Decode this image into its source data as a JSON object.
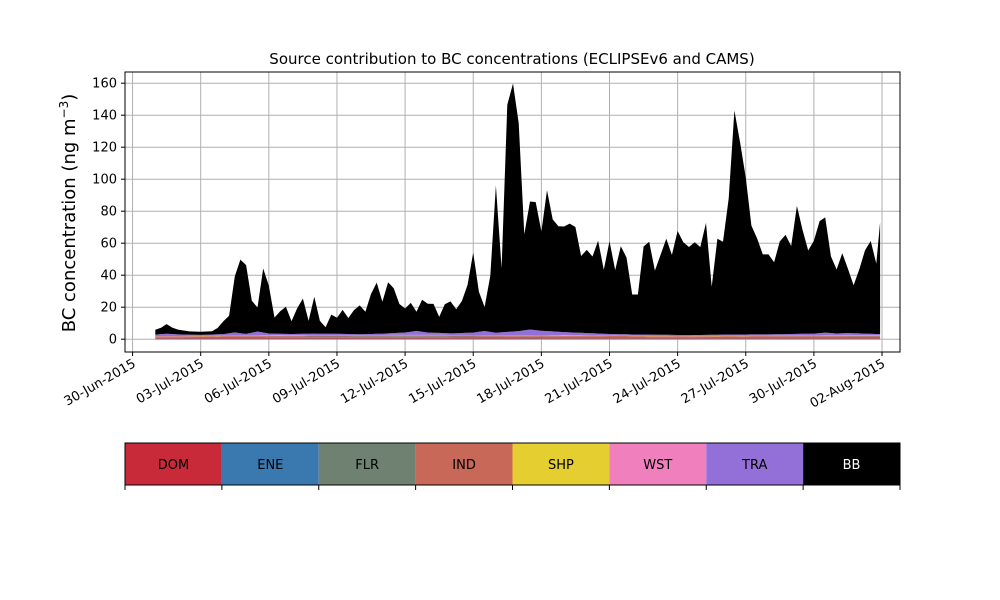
{
  "chart_data": {
    "type": "area",
    "title": "Source contribution to BC concentrations (ECLIPSEv6 and CAMS)",
    "ylabel": "BC concentration (ng m",
    "ylabel_sup": "−3",
    "ylabel_close": ")",
    "xlabel": "",
    "stacked": true,
    "ylim": [
      -8,
      167
    ],
    "xlim": [
      "2015-06-29T16:00",
      "2015-08-02T19:00"
    ],
    "yticks": [
      0,
      20,
      40,
      60,
      80,
      100,
      120,
      140,
      160
    ],
    "xticks": [
      {
        "date": "2015-06-30",
        "label": "30-Jun-2015"
      },
      {
        "date": "2015-07-03",
        "label": "03-Jul-2015"
      },
      {
        "date": "2015-07-06",
        "label": "06-Jul-2015"
      },
      {
        "date": "2015-07-09",
        "label": "09-Jul-2015"
      },
      {
        "date": "2015-07-12",
        "label": "12-Jul-2015"
      },
      {
        "date": "2015-07-15",
        "label": "15-Jul-2015"
      },
      {
        "date": "2015-07-18",
        "label": "18-Jul-2015"
      },
      {
        "date": "2015-07-21",
        "label": "21-Jul-2015"
      },
      {
        "date": "2015-07-24",
        "label": "24-Jul-2015"
      },
      {
        "date": "2015-07-27",
        "label": "27-Jul-2015"
      },
      {
        "date": "2015-07-30",
        "label": "30-Jul-2015"
      },
      {
        "date": "2015-08-02",
        "label": "02-Aug-2015"
      }
    ],
    "grid": true,
    "legend_placement": "bottom",
    "series": [
      {
        "name": "DOM",
        "color": "#c82a3a",
        "points": [
          [
            "2015-07-01T00:00",
            0.5
          ],
          [
            "2015-07-07T00:00",
            0.6
          ],
          [
            "2015-07-13T00:00",
            0.6
          ],
          [
            "2015-07-19T00:00",
            0.5
          ],
          [
            "2015-07-25T00:00",
            0.5
          ],
          [
            "2015-07-31T12:00",
            0.5
          ]
        ]
      },
      {
        "name": "ENE",
        "color": "#3a78b0",
        "points": [
          [
            "2015-07-01T00:00",
            0.2
          ],
          [
            "2015-07-10T00:00",
            0.2
          ],
          [
            "2015-07-20T00:00",
            0.2
          ],
          [
            "2015-07-31T12:00",
            0.2
          ]
        ]
      },
      {
        "name": "FLR",
        "color": "#6f8271",
        "points": [
          [
            "2015-07-01T00:00",
            0.5
          ],
          [
            "2015-07-06T00:00",
            0.8
          ],
          [
            "2015-07-12T00:00",
            1.0
          ],
          [
            "2015-07-18T00:00",
            0.8
          ],
          [
            "2015-07-24T00:00",
            0.6
          ],
          [
            "2015-07-31T12:00",
            0.9
          ]
        ]
      },
      {
        "name": "IND",
        "color": "#c86858",
        "points": [
          [
            "2015-07-01T00:00",
            0.5
          ],
          [
            "2015-07-06T00:00",
            0.6
          ],
          [
            "2015-07-12T00:00",
            0.7
          ],
          [
            "2015-07-18T00:00",
            0.8
          ],
          [
            "2015-07-24T00:00",
            0.5
          ],
          [
            "2015-07-31T12:00",
            0.6
          ]
        ]
      },
      {
        "name": "SHP",
        "color": "#e5ce30",
        "points": [
          [
            "2015-07-01T00:00",
            0.1
          ],
          [
            "2015-07-15T00:00",
            0.1
          ],
          [
            "2015-07-31T12:00",
            0.1
          ]
        ]
      },
      {
        "name": "WST",
        "color": "#f07fbd",
        "points": [
          [
            "2015-07-01T00:00",
            0.1
          ],
          [
            "2015-07-15T00:00",
            0.1
          ],
          [
            "2015-07-31T12:00",
            0.1
          ]
        ]
      },
      {
        "name": "TRA",
        "color": "#9370d8",
        "points": [
          [
            "2015-07-01T00:00",
            1.0
          ],
          [
            "2015-07-01T12:00",
            1.5
          ],
          [
            "2015-07-02T00:00",
            1.0
          ],
          [
            "2015-07-03T00:00",
            0.6
          ],
          [
            "2015-07-04T00:00",
            1.0
          ],
          [
            "2015-07-04T12:00",
            2.0
          ],
          [
            "2015-07-05T00:00",
            1.0
          ],
          [
            "2015-07-05T12:00",
            2.5
          ],
          [
            "2015-07-06T00:00",
            1.2
          ],
          [
            "2015-07-07T00:00",
            0.8
          ],
          [
            "2015-07-08T00:00",
            1.0
          ],
          [
            "2015-07-09T00:00",
            0.8
          ],
          [
            "2015-07-10T00:00",
            0.5
          ],
          [
            "2015-07-11T00:00",
            0.8
          ],
          [
            "2015-07-12T00:00",
            1.5
          ],
          [
            "2015-07-12T12:00",
            2.5
          ],
          [
            "2015-07-13T00:00",
            1.5
          ],
          [
            "2015-07-14T00:00",
            1.0
          ],
          [
            "2015-07-15T00:00",
            1.5
          ],
          [
            "2015-07-15T12:00",
            2.5
          ],
          [
            "2015-07-16T00:00",
            1.5
          ],
          [
            "2015-07-17T00:00",
            2.5
          ],
          [
            "2015-07-17T12:00",
            3.5
          ],
          [
            "2015-07-18T00:00",
            2.8
          ],
          [
            "2015-07-19T00:00",
            2.0
          ],
          [
            "2015-07-20T00:00",
            1.5
          ],
          [
            "2015-07-21T00:00",
            1.0
          ],
          [
            "2015-07-22T00:00",
            0.8
          ],
          [
            "2015-07-23T00:00",
            0.8
          ],
          [
            "2015-07-24T00:00",
            0.6
          ],
          [
            "2015-07-25T00:00",
            0.6
          ],
          [
            "2015-07-26T00:00",
            0.8
          ],
          [
            "2015-07-27T00:00",
            0.8
          ],
          [
            "2015-07-28T00:00",
            0.8
          ],
          [
            "2015-07-29T00:00",
            1.0
          ],
          [
            "2015-07-30T00:00",
            1.2
          ],
          [
            "2015-07-30T12:00",
            1.8
          ],
          [
            "2015-07-31T00:00",
            1.2
          ],
          [
            "2015-07-31T12:00",
            1.5
          ],
          [
            "2015-08-01T00:00",
            1.2
          ],
          [
            "2015-08-01T22:00",
            0.8
          ]
        ]
      },
      {
        "name": "BB",
        "color": "#000000",
        "points": [
          [
            "2015-07-01T00:00",
            3
          ],
          [
            "2015-07-01T06:00",
            4
          ],
          [
            "2015-07-01T12:00",
            6
          ],
          [
            "2015-07-01T18:00",
            4
          ],
          [
            "2015-07-02T00:00",
            3
          ],
          [
            "2015-07-02T12:00",
            2
          ],
          [
            "2015-07-03T00:00",
            2
          ],
          [
            "2015-07-03T12:00",
            2
          ],
          [
            "2015-07-03T18:00",
            4
          ],
          [
            "2015-07-04T00:00",
            8
          ],
          [
            "2015-07-04T06:00",
            11
          ],
          [
            "2015-07-04T12:00",
            35
          ],
          [
            "2015-07-04T18:00",
            46
          ],
          [
            "2015-07-05T00:00",
            43
          ],
          [
            "2015-07-05T06:00",
            20
          ],
          [
            "2015-07-05T12:00",
            15
          ],
          [
            "2015-07-05T18:00",
            40
          ],
          [
            "2015-07-06T00:00",
            30
          ],
          [
            "2015-07-06T06:00",
            10
          ],
          [
            "2015-07-06T12:00",
            14
          ],
          [
            "2015-07-06T18:00",
            17
          ],
          [
            "2015-07-07T00:00",
            8
          ],
          [
            "2015-07-07T06:00",
            16
          ],
          [
            "2015-07-07T12:00",
            22
          ],
          [
            "2015-07-07T18:00",
            8
          ],
          [
            "2015-07-08T00:00",
            23
          ],
          [
            "2015-07-08T06:00",
            8
          ],
          [
            "2015-07-08T12:00",
            4
          ],
          [
            "2015-07-08T18:00",
            12
          ],
          [
            "2015-07-09T00:00",
            10
          ],
          [
            "2015-07-09T06:00",
            15
          ],
          [
            "2015-07-09T12:00",
            10
          ],
          [
            "2015-07-09T18:00",
            15
          ],
          [
            "2015-07-10T00:00",
            18
          ],
          [
            "2015-07-10T06:00",
            14
          ],
          [
            "2015-07-10T12:00",
            25
          ],
          [
            "2015-07-10T18:00",
            32
          ],
          [
            "2015-07-11T00:00",
            20
          ],
          [
            "2015-07-11T06:00",
            32
          ],
          [
            "2015-07-11T12:00",
            28
          ],
          [
            "2015-07-11T18:00",
            18
          ],
          [
            "2015-07-12T00:00",
            15
          ],
          [
            "2015-07-12T06:00",
            18
          ],
          [
            "2015-07-12T12:00",
            12
          ],
          [
            "2015-07-12T18:00",
            20
          ],
          [
            "2015-07-13T00:00",
            18
          ],
          [
            "2015-07-13T06:00",
            18
          ],
          [
            "2015-07-13T12:00",
            10
          ],
          [
            "2015-07-13T18:00",
            18
          ],
          [
            "2015-07-14T00:00",
            20
          ],
          [
            "2015-07-14T06:00",
            15
          ],
          [
            "2015-07-14T12:00",
            20
          ],
          [
            "2015-07-14T18:00",
            30
          ],
          [
            "2015-07-15T00:00",
            50
          ],
          [
            "2015-07-15T06:00",
            25
          ],
          [
            "2015-07-15T12:00",
            15
          ],
          [
            "2015-07-15T18:00",
            35
          ],
          [
            "2015-07-16T00:00",
            92
          ],
          [
            "2015-07-16T06:00",
            40
          ],
          [
            "2015-07-16T12:00",
            142
          ],
          [
            "2015-07-16T18:00",
            155
          ],
          [
            "2015-07-17T00:00",
            130
          ],
          [
            "2015-07-17T06:00",
            60
          ],
          [
            "2015-07-17T12:00",
            80
          ],
          [
            "2015-07-17T18:00",
            80
          ],
          [
            "2015-07-18T00:00",
            62
          ],
          [
            "2015-07-18T06:00",
            88
          ],
          [
            "2015-07-18T12:00",
            70
          ],
          [
            "2015-07-18T18:00",
            66
          ],
          [
            "2015-07-19T00:00",
            66
          ],
          [
            "2015-07-19T06:00",
            68
          ],
          [
            "2015-07-19T12:00",
            66
          ],
          [
            "2015-07-19T18:00",
            48
          ],
          [
            "2015-07-20T00:00",
            52
          ],
          [
            "2015-07-20T06:00",
            48
          ],
          [
            "2015-07-20T12:00",
            58
          ],
          [
            "2015-07-20T18:00",
            40
          ],
          [
            "2015-07-21T00:00",
            58
          ],
          [
            "2015-07-21T06:00",
            40
          ],
          [
            "2015-07-21T12:00",
            55
          ],
          [
            "2015-07-21T18:00",
            48
          ],
          [
            "2015-07-22T00:00",
            25
          ],
          [
            "2015-07-22T06:00",
            25
          ],
          [
            "2015-07-22T12:00",
            55
          ],
          [
            "2015-07-22T18:00",
            58
          ],
          [
            "2015-07-23T00:00",
            40
          ],
          [
            "2015-07-23T06:00",
            50
          ],
          [
            "2015-07-23T12:00",
            60
          ],
          [
            "2015-07-23T18:00",
            50
          ],
          [
            "2015-07-24T00:00",
            65
          ],
          [
            "2015-07-24T06:00",
            58
          ],
          [
            "2015-07-24T12:00",
            55
          ],
          [
            "2015-07-24T18:00",
            58
          ],
          [
            "2015-07-25T00:00",
            55
          ],
          [
            "2015-07-25T06:00",
            70
          ],
          [
            "2015-07-25T12:00",
            30
          ],
          [
            "2015-07-25T18:00",
            60
          ],
          [
            "2015-07-26T00:00",
            58
          ],
          [
            "2015-07-26T06:00",
            85
          ],
          [
            "2015-07-26T12:00",
            140
          ],
          [
            "2015-07-26T18:00",
            120
          ],
          [
            "2015-07-27T00:00",
            98
          ],
          [
            "2015-07-27T06:00",
            68
          ],
          [
            "2015-07-27T12:00",
            60
          ],
          [
            "2015-07-27T18:00",
            50
          ],
          [
            "2015-07-28T00:00",
            50
          ],
          [
            "2015-07-28T06:00",
            45
          ],
          [
            "2015-07-28T12:00",
            58
          ],
          [
            "2015-07-28T18:00",
            62
          ],
          [
            "2015-07-29T00:00",
            55
          ],
          [
            "2015-07-29T06:00",
            80
          ],
          [
            "2015-07-29T12:00",
            65
          ],
          [
            "2015-07-29T18:00",
            52
          ],
          [
            "2015-07-30T00:00",
            58
          ],
          [
            "2015-07-30T06:00",
            70
          ],
          [
            "2015-07-30T12:00",
            72
          ],
          [
            "2015-07-30T18:00",
            48
          ],
          [
            "2015-07-31T00:00",
            40
          ],
          [
            "2015-07-31T06:00",
            50
          ],
          [
            "2015-07-31T12:00",
            40
          ],
          [
            "2015-07-31T18:00",
            30
          ],
          [
            "2015-08-01T00:00",
            40
          ],
          [
            "2015-08-01T06:00",
            52
          ],
          [
            "2015-08-01T12:00",
            58
          ],
          [
            "2015-08-01T18:00",
            44
          ],
          [
            "2015-08-01T22:00",
            70
          ]
        ]
      }
    ]
  }
}
